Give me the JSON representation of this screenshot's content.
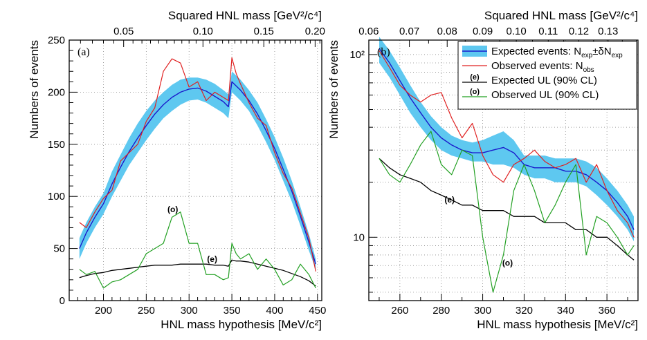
{
  "chart_data": [
    {
      "type": "line",
      "panel_label": "(a)",
      "xlabel": "HNL mass hypothesis [MeV/c²]",
      "ylabel": "Numbers of events",
      "top_axis_label": "Squared HNL mass [GeV²/c⁴]",
      "xlim": [
        160,
        455
      ],
      "ylim": [
        0,
        250
      ],
      "x_ticks": [
        "200",
        "250",
        "300",
        "350",
        "400",
        "450"
      ],
      "y_ticks": [
        "0",
        "50",
        "100",
        "150",
        "200",
        "250"
      ],
      "top_ticks": [
        {
          "value": 0.05,
          "label": "0.05"
        },
        {
          "value": 0.1,
          "label": "0.10"
        },
        {
          "value": 0.15,
          "label": "0.15"
        },
        {
          "value": 0.2,
          "label": "0.20"
        }
      ],
      "grid": true,
      "x": [
        172,
        180,
        190,
        200,
        210,
        220,
        230,
        240,
        250,
        260,
        270,
        280,
        290,
        300,
        310,
        320,
        330,
        340,
        346,
        350,
        355,
        360,
        370,
        380,
        390,
        400,
        410,
        420,
        430,
        440,
        448
      ],
      "series": [
        {
          "role": "expected_band_low",
          "values": [
            40,
            55,
            70,
            83,
            100,
            115,
            130,
            142,
            154,
            165,
            175,
            182,
            188,
            192,
            193,
            190,
            185,
            180,
            175,
            200,
            196,
            192,
            182,
            168,
            152,
            135,
            115,
            95,
            72,
            48,
            30
          ]
        },
        {
          "role": "expected_band_high",
          "values": [
            60,
            75,
            90,
            103,
            124,
            140,
            156,
            170,
            182,
            192,
            200,
            207,
            212,
            214,
            214,
            212,
            208,
            202,
            198,
            220,
            216,
            212,
            202,
            190,
            174,
            157,
            137,
            115,
            90,
            64,
            40
          ]
        },
        {
          "role": "expected_mean",
          "values": [
            50,
            65,
            80,
            93,
            112,
            128,
            143,
            156,
            168,
            179,
            188,
            195,
            200,
            203,
            204,
            201,
            196,
            191,
            186,
            210,
            206,
            202,
            192,
            179,
            163,
            146,
            126,
            105,
            81,
            56,
            35
          ]
        },
        {
          "role": "observed",
          "values": [
            75,
            70,
            85,
            98,
            106,
            134,
            142,
            150,
            172,
            185,
            220,
            232,
            228,
            205,
            210,
            192,
            200,
            195,
            192,
            233,
            218,
            208,
            190,
            175,
            168,
            142,
            122,
            108,
            84,
            60,
            28
          ]
        },
        {
          "role": "expected_ul",
          "values": [
            22,
            24,
            26,
            27,
            29,
            30,
            31,
            32,
            33,
            34,
            34,
            34,
            35,
            35,
            35,
            35,
            34,
            34,
            33,
            39,
            38,
            38,
            37,
            35,
            33,
            31,
            29,
            26,
            23,
            19,
            14
          ]
        },
        {
          "role": "observed_ul",
          "values": [
            30,
            25,
            28,
            12,
            18,
            20,
            25,
            30,
            45,
            50,
            55,
            80,
            85,
            55,
            55,
            25,
            25,
            20,
            22,
            55,
            45,
            40,
            45,
            30,
            40,
            30,
            15,
            20,
            35,
            25,
            12
          ]
        }
      ],
      "annotations": [
        {
          "text": "(o)",
          "x": 281,
          "y": 85,
          "color": "#22a022"
        },
        {
          "text": "(e)",
          "x": 327,
          "y": 37,
          "color": "#000000"
        }
      ]
    },
    {
      "type": "line",
      "panel_label": "(b)",
      "xlabel": "HNL mass hypothesis [MeV/c²]",
      "ylabel": "Numbers of events",
      "top_axis_label": "Squared HNL mass [GeV²/c⁴]",
      "xlim": [
        245,
        375
      ],
      "ylim": [
        4.5,
        120
      ],
      "log_y": true,
      "x_ticks": [
        "260",
        "280",
        "300",
        "320",
        "340",
        "360"
      ],
      "y_ticks": [
        {
          "value": 10,
          "label": "10"
        },
        {
          "value": 100,
          "label": "10²"
        }
      ],
      "top_ticks": [
        {
          "value": 0.06,
          "label": "0.06"
        },
        {
          "value": 0.07,
          "label": "0.07"
        },
        {
          "value": 0.08,
          "label": "0.08"
        },
        {
          "value": 0.09,
          "label": "0.09"
        },
        {
          "value": 0.1,
          "label": "0.10"
        },
        {
          "value": 0.11,
          "label": "0.11"
        },
        {
          "value": 0.12,
          "label": "0.12"
        },
        {
          "value": 0.13,
          "label": "0.13"
        }
      ],
      "grid": true,
      "legend_position": "top-right",
      "legend": [
        {
          "mark": "band",
          "label": "Expected events: N",
          "sub1": "exp",
          "mid": "±δN",
          "sub2": "exp"
        },
        {
          "mark": "red-line",
          "label": "Observed events: N",
          "sub1": "obs"
        },
        {
          "mark": "e",
          "label": "Expected UL (90% CL)"
        },
        {
          "mark": "o",
          "label": "Observed UL (90% CL)"
        }
      ],
      "x": [
        250,
        255,
        260,
        265,
        270,
        275,
        280,
        285,
        290,
        295,
        300,
        305,
        310,
        315,
        320,
        325,
        330,
        335,
        340,
        345,
        350,
        355,
        360,
        365,
        370,
        373
      ],
      "series": [
        {
          "role": "expected_band_low",
          "values": [
            90,
            75,
            60,
            48,
            40,
            34,
            30,
            28,
            27,
            26,
            26,
            25,
            25,
            24,
            22,
            21,
            21,
            20,
            20,
            20,
            19,
            17,
            15,
            13,
            11,
            9.5
          ]
        },
        {
          "role": "expected_band_high",
          "values": [
            125,
            105,
            85,
            68,
            55,
            46,
            40,
            36,
            34,
            33,
            34,
            36,
            38,
            34,
            28,
            28,
            28,
            27,
            27,
            27,
            26,
            24,
            21,
            18,
            15,
            13
          ]
        },
        {
          "role": "expected_mean",
          "values": [
            108,
            90,
            72,
            58,
            48,
            40,
            35,
            32,
            30,
            29,
            29,
            30,
            31,
            29,
            25,
            24,
            24,
            24,
            23,
            23,
            22,
            20,
            18,
            15.5,
            13,
            11
          ]
        },
        {
          "role": "observed",
          "values": [
            105,
            85,
            68,
            60,
            55,
            60,
            62,
            45,
            35,
            42,
            28,
            22,
            20,
            25,
            27,
            30,
            26,
            24,
            25,
            27,
            20,
            25,
            18,
            14,
            12,
            10
          ]
        },
        {
          "role": "expected_ul",
          "values": [
            27,
            24,
            22,
            21,
            20,
            18,
            17,
            16,
            15,
            15,
            14,
            14,
            14,
            13,
            13,
            13,
            12,
            12,
            12,
            11,
            11,
            10,
            10,
            9,
            8,
            7.5
          ]
        },
        {
          "role": "observed_ul",
          "values": [
            27,
            22,
            20,
            25,
            32,
            38,
            25,
            22,
            30,
            28,
            10,
            5,
            8,
            18,
            25,
            18,
            12,
            15,
            20,
            25,
            8,
            13,
            12,
            10,
            8,
            9
          ]
        }
      ],
      "annotations": [
        {
          "text": "(e)",
          "x": 284,
          "y": 15.5,
          "color": "#000000"
        },
        {
          "text": "(o)",
          "x": 312,
          "y": 7.0,
          "color": "#22a022"
        }
      ]
    }
  ],
  "colors": {
    "band": "#5ec8f0",
    "expected_mean": "#1a1acc",
    "observed": "#e02020",
    "expected_ul": "#000000",
    "observed_ul": "#22a022"
  }
}
